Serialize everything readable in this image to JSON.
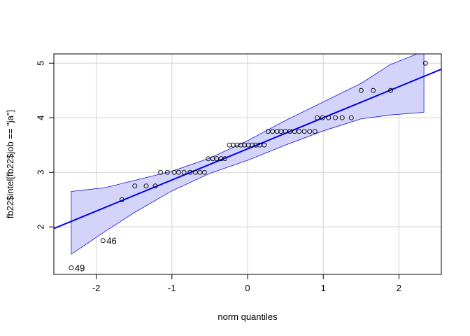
{
  "chart_data": {
    "type": "scatter",
    "title": "",
    "xlabel": "norm quantiles",
    "ylabel": "fb22$intel[fb22$job == \"ja\"]",
    "xlim": [
      -2.56,
      2.56
    ],
    "ylim": [
      1.13,
      5.17
    ],
    "grid": true,
    "x_ticks": [
      -2,
      -1,
      0,
      1,
      2
    ],
    "y_ticks": [
      2,
      3,
      4,
      5
    ],
    "x_tick_labels": [
      "-2",
      "-1",
      "0",
      "1",
      "2"
    ],
    "y_tick_labels": [
      "2",
      "3",
      "4",
      "5"
    ],
    "colors": {
      "line": "#0000ee",
      "band_fill": "#d4d4fa",
      "band_edge": "#1414dc",
      "points": "#000000",
      "grid": "#d3d3d3"
    },
    "reference_line": {
      "intercept": 3.43,
      "slope": 0.57
    },
    "confidence_band": {
      "x": [
        -2.33,
        -1.88,
        -1.5,
        -1.0,
        -0.5,
        0.0,
        0.5,
        1.0,
        1.5,
        1.88,
        2.33
      ],
      "upper": [
        2.65,
        2.72,
        2.85,
        3.02,
        3.26,
        3.58,
        3.95,
        4.29,
        4.63,
        4.97,
        5.22
      ],
      "lower": [
        1.5,
        1.92,
        2.26,
        2.66,
        2.98,
        3.22,
        3.5,
        3.76,
        3.98,
        4.05,
        4.1
      ]
    },
    "points": {
      "x": [
        -2.33,
        -1.91,
        -1.66,
        -1.49,
        -1.34,
        -1.22,
        -1.15,
        -1.06,
        -0.97,
        -0.91,
        -0.84,
        -0.76,
        -0.69,
        -0.63,
        -0.57,
        -0.52,
        -0.46,
        -0.41,
        -0.35,
        -0.3,
        -0.24,
        -0.19,
        -0.14,
        -0.09,
        -0.04,
        0.01,
        0.06,
        0.11,
        0.16,
        0.22,
        0.27,
        0.33,
        0.39,
        0.44,
        0.5,
        0.56,
        0.62,
        0.68,
        0.75,
        0.82,
        0.89,
        0.92,
        0.99,
        1.07,
        1.16,
        1.25,
        1.37,
        1.5,
        1.66,
        1.89,
        2.35
      ],
      "y": [
        1.25,
        1.75,
        2.5,
        2.75,
        2.75,
        2.75,
        3,
        3,
        3,
        3,
        3,
        3,
        3,
        3,
        3,
        3.25,
        3.25,
        3.25,
        3.25,
        3.25,
        3.5,
        3.5,
        3.5,
        3.5,
        3.5,
        3.5,
        3.5,
        3.5,
        3.5,
        3.5,
        3.75,
        3.75,
        3.75,
        3.75,
        3.75,
        3.75,
        3.75,
        3.75,
        3.75,
        3.75,
        3.75,
        4,
        4,
        4,
        4,
        4,
        4,
        4.5,
        4.5,
        4.5,
        5
      ]
    },
    "labeled_points": [
      {
        "label": "49",
        "x": -2.33,
        "y": 1.25
      },
      {
        "label": "46",
        "x": -1.91,
        "y": 1.75
      }
    ]
  }
}
